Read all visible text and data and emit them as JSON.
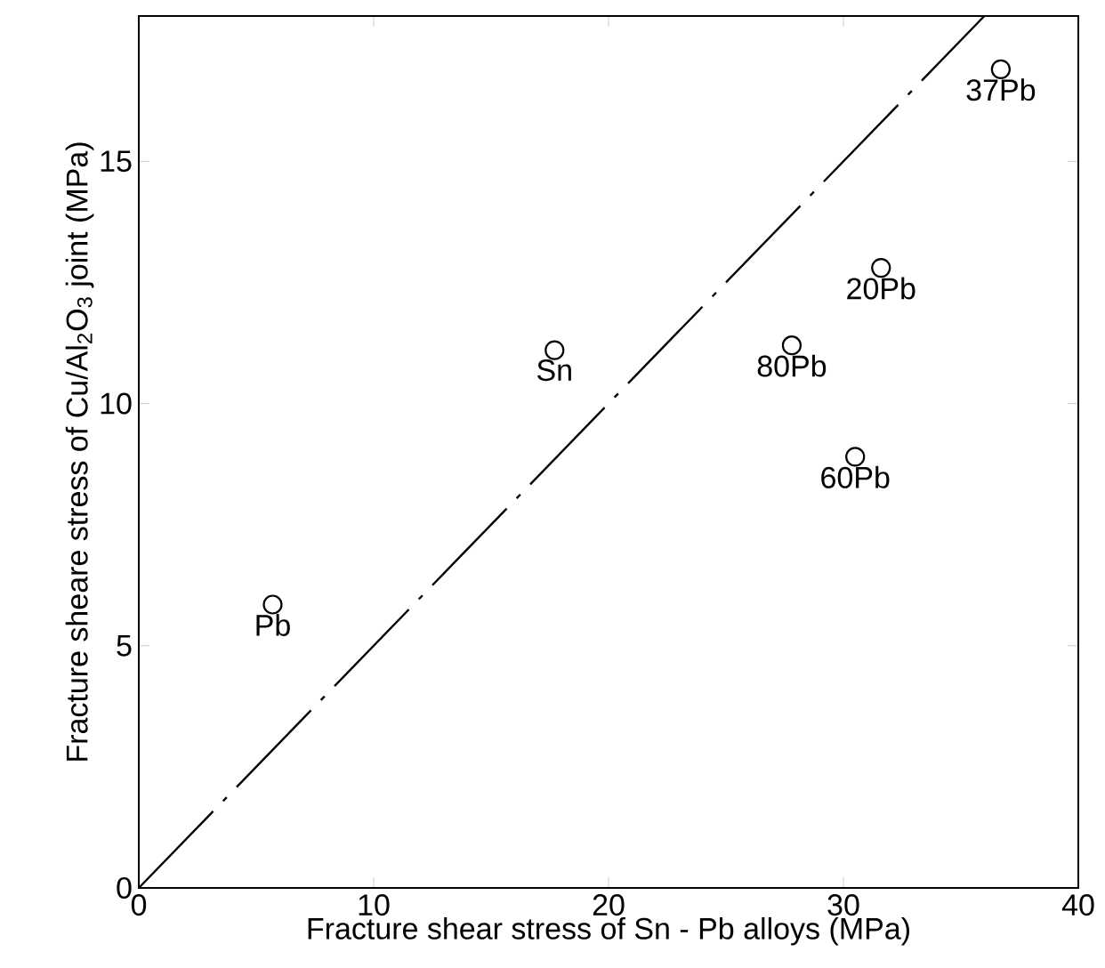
{
  "chart_data": {
    "type": "scatter",
    "xlabel": "Fracture shear stress of Sn - Pb alloys  (MPa)",
    "ylabel": "Fracture sheare stress of Cu/Al$_{2}$O$_{3}$ joint  (MPa)",
    "xlim": [
      0,
      40
    ],
    "ylim": [
      0,
      18
    ],
    "xticks": [
      0,
      10,
      20,
      30,
      40
    ],
    "yticks": [
      0,
      5,
      10,
      15
    ],
    "series": [
      {
        "color": "#000000",
        "marker": "circle",
        "x": [
          5.7,
          17.7,
          27.8,
          30.5,
          31.6,
          36.7
        ],
        "values": [
          5.85,
          11.1,
          11.2,
          8.9,
          12.8,
          16.9
        ]
      },
      {
        "type": "line",
        "color": "#000000",
        "marker": "none",
        "line_style": "dashed",
        "x": [
          0,
          36
        ],
        "values": [
          0,
          18
        ]
      }
    ],
    "annotations": [
      {
        "text": "Pb",
        "x": 5.7,
        "y": 5.85
      },
      {
        "text": "Sn",
        "x": 17.7,
        "y": 11.1
      },
      {
        "text": "80Pb",
        "x": 27.8,
        "y": 11.2
      },
      {
        "text": "60Pb",
        "x": 30.5,
        "y": 8.9
      },
      {
        "text": "20Pb",
        "x": 31.6,
        "y": 12.8
      },
      {
        "text": "37Pb",
        "x": 36.7,
        "y": 16.9
      }
    ]
  }
}
